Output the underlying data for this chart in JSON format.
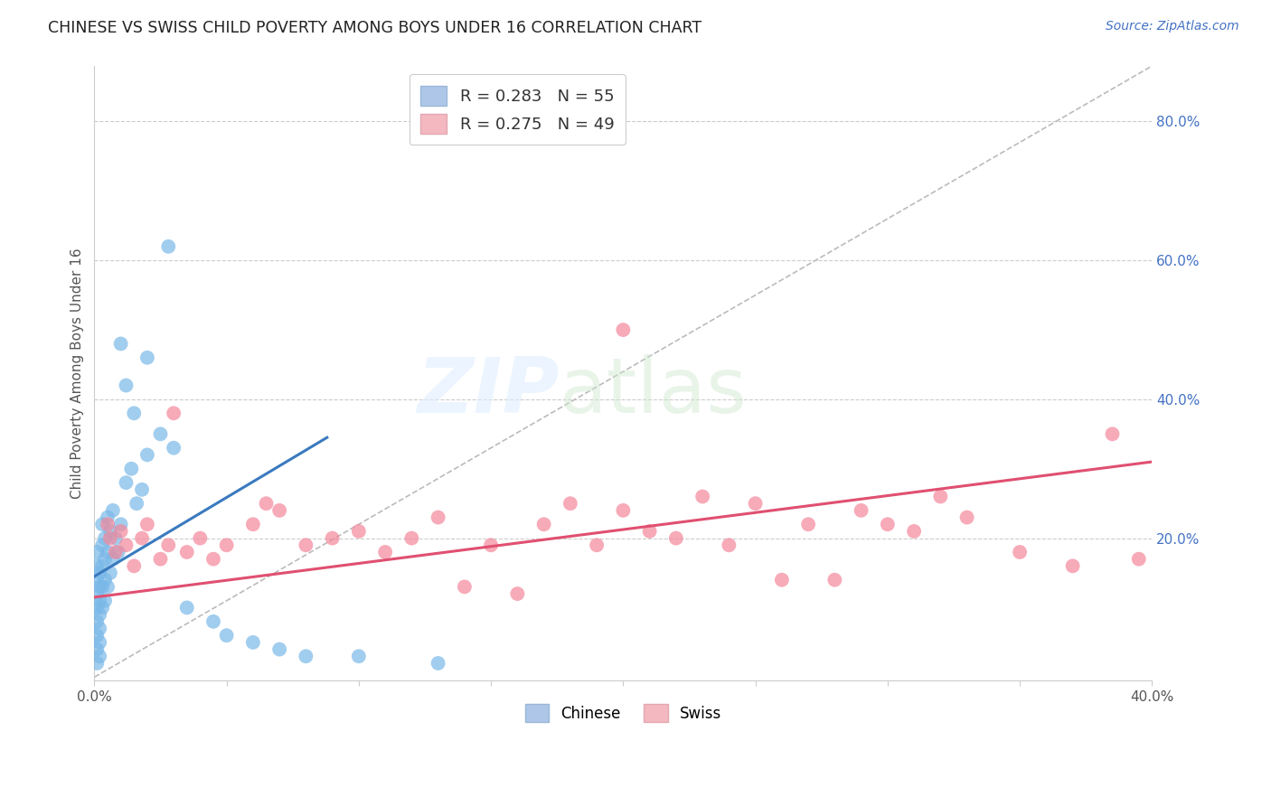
{
  "title": "CHINESE VS SWISS CHILD POVERTY AMONG BOYS UNDER 16 CORRELATION CHART",
  "source": "Source: ZipAtlas.com",
  "ylabel": "Child Poverty Among Boys Under 16",
  "xlim": [
    0.0,
    0.4
  ],
  "ylim": [
    -0.005,
    0.88
  ],
  "ytick_values": [
    0.2,
    0.4,
    0.6,
    0.8
  ],
  "ytick_labels": [
    "20.0%",
    "40.0%",
    "60.0%",
    "80.0%"
  ],
  "chinese_color": "#7ab8e8",
  "chinese_line_color": "#3a7abf",
  "swiss_color": "#f4879a",
  "swiss_line_color": "#e05070",
  "diag_color": "#bbbbbb",
  "grid_color": "#cccccc",
  "background_color": "#ffffff",
  "right_tick_color": "#4472c4",
  "chinese_x": [
    0.001,
    0.001,
    0.001,
    0.001,
    0.001,
    0.001,
    0.001,
    0.001,
    0.001,
    0.002,
    0.002,
    0.002,
    0.002,
    0.002,
    0.002,
    0.002,
    0.003,
    0.003,
    0.003,
    0.003,
    0.003,
    0.004,
    0.004,
    0.004,
    0.004,
    0.005,
    0.005,
    0.005,
    0.006,
    0.006,
    0.007,
    0.007,
    0.008,
    0.009,
    0.01,
    0.012,
    0.014,
    0.016,
    0.018,
    0.02,
    0.025,
    0.03,
    0.035,
    0.045,
    0.05,
    0.06,
    0.07,
    0.08,
    0.1,
    0.13,
    0.02,
    0.028,
    0.01,
    0.012,
    0.015
  ],
  "chinese_y": [
    0.14,
    0.16,
    0.12,
    0.18,
    0.1,
    0.08,
    0.06,
    0.04,
    0.02,
    0.15,
    0.13,
    0.11,
    0.09,
    0.07,
    0.05,
    0.03,
    0.22,
    0.19,
    0.16,
    0.13,
    0.1,
    0.2,
    0.17,
    0.14,
    0.11,
    0.23,
    0.18,
    0.13,
    0.21,
    0.15,
    0.24,
    0.17,
    0.2,
    0.18,
    0.22,
    0.28,
    0.3,
    0.25,
    0.27,
    0.32,
    0.35,
    0.33,
    0.1,
    0.08,
    0.06,
    0.05,
    0.04,
    0.03,
    0.03,
    0.02,
    0.46,
    0.62,
    0.48,
    0.42,
    0.38
  ],
  "swiss_x": [
    0.005,
    0.006,
    0.008,
    0.01,
    0.012,
    0.015,
    0.018,
    0.02,
    0.025,
    0.028,
    0.03,
    0.035,
    0.04,
    0.045,
    0.05,
    0.06,
    0.065,
    0.07,
    0.08,
    0.09,
    0.1,
    0.11,
    0.12,
    0.13,
    0.14,
    0.15,
    0.16,
    0.17,
    0.18,
    0.19,
    0.2,
    0.21,
    0.22,
    0.23,
    0.24,
    0.25,
    0.26,
    0.27,
    0.28,
    0.29,
    0.3,
    0.31,
    0.32,
    0.33,
    0.35,
    0.37,
    0.385,
    0.395,
    0.2
  ],
  "swiss_y": [
    0.22,
    0.2,
    0.18,
    0.21,
    0.19,
    0.16,
    0.2,
    0.22,
    0.17,
    0.19,
    0.38,
    0.18,
    0.2,
    0.17,
    0.19,
    0.22,
    0.25,
    0.24,
    0.19,
    0.2,
    0.21,
    0.18,
    0.2,
    0.23,
    0.13,
    0.19,
    0.12,
    0.22,
    0.25,
    0.19,
    0.24,
    0.21,
    0.2,
    0.26,
    0.19,
    0.25,
    0.14,
    0.22,
    0.14,
    0.24,
    0.22,
    0.21,
    0.26,
    0.23,
    0.18,
    0.16,
    0.35,
    0.17,
    0.5
  ],
  "chinese_line_x": [
    0.0,
    0.088
  ],
  "chinese_line_y": [
    0.145,
    0.345
  ],
  "swiss_line_x": [
    0.0,
    0.4
  ],
  "swiss_line_y": [
    0.115,
    0.31
  ],
  "diag_line_x": [
    0.0,
    0.4
  ],
  "diag_line_y": [
    0.0,
    0.88
  ]
}
